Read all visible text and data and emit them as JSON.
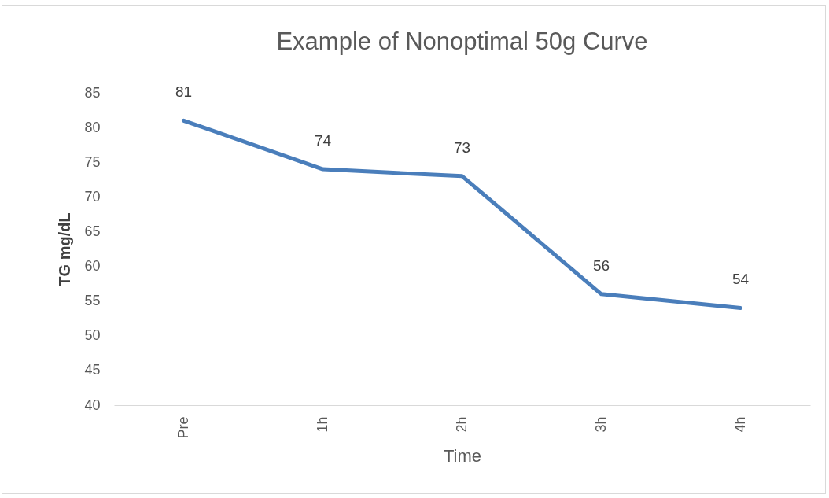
{
  "chart_data": {
    "type": "line",
    "title": "Example of Nonoptimal 50g Curve",
    "xlabel": "Time",
    "ylabel": "TG mg/dL",
    "categories": [
      "Pre",
      "1h",
      "2h",
      "3h",
      "4h"
    ],
    "series": [
      {
        "color": "#4a7ebb",
        "values": [
          81,
          74,
          73,
          56,
          54
        ]
      }
    ],
    "ylim": [
      40,
      85
    ],
    "yticks": [
      40,
      45,
      50,
      55,
      60,
      65,
      70,
      75,
      80,
      85
    ],
    "data_labels": true
  }
}
